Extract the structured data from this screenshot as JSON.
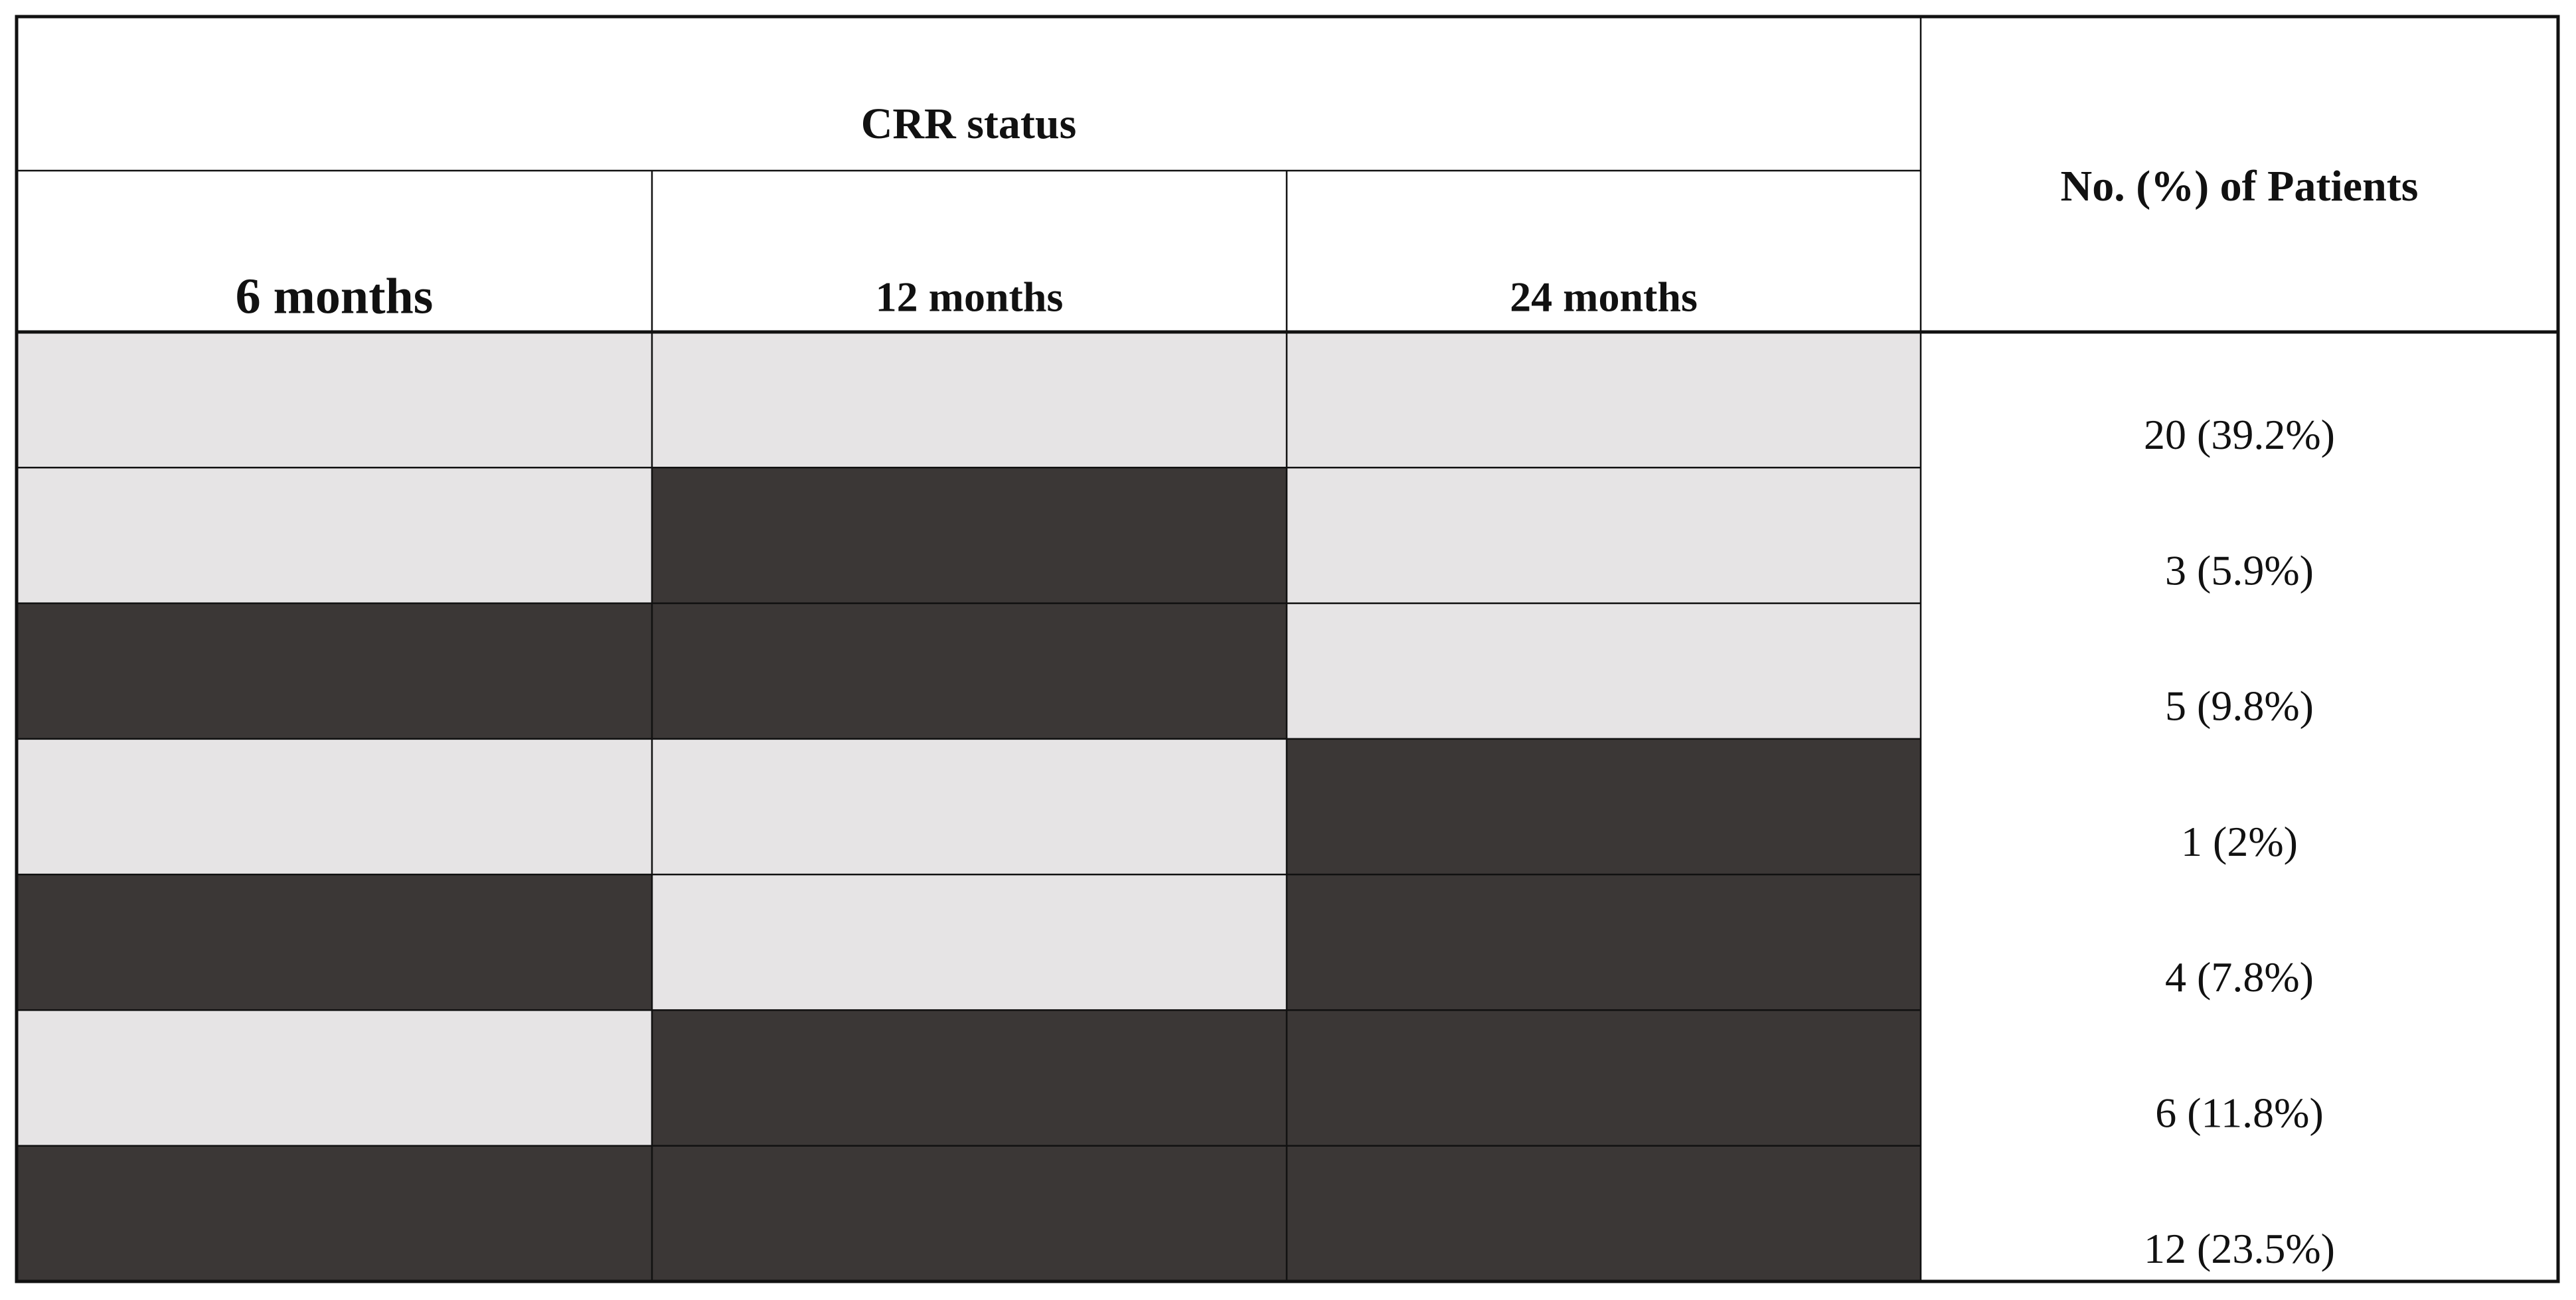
{
  "header": {
    "group_title": "CRR status",
    "columns": [
      "6 months",
      "12 months",
      "24 months"
    ],
    "patients_title": "No. (%) of Patients"
  },
  "table": {
    "rows": [
      {
        "cells": [
          "#e6e4e5",
          "#e6e4e5",
          "#e6e4e5"
        ],
        "patients": "20 (39.2%)"
      },
      {
        "cells": [
          "#e6e4e5",
          "#3b3736",
          "#e6e4e5"
        ],
        "patients": "3 (5.9%)"
      },
      {
        "cells": [
          "#3b3736",
          "#3b3736",
          "#e6e4e5"
        ],
        "patients": "5 (9.8%)"
      },
      {
        "cells": [
          "#e6e4e5",
          "#e6e4e5",
          "#3b3736"
        ],
        "patients": "1 (2%)"
      },
      {
        "cells": [
          "#3b3736",
          "#e6e4e5",
          "#3b3736"
        ],
        "patients": "4 (7.8%)"
      },
      {
        "cells": [
          "#e6e4e5",
          "#3b3736",
          "#3b3736"
        ],
        "patients": "6 (11.8%)"
      },
      {
        "cells": [
          "#3b3736",
          "#3b3736",
          "#3b3736"
        ],
        "patients": "12 (23.5%)"
      }
    ]
  }
}
